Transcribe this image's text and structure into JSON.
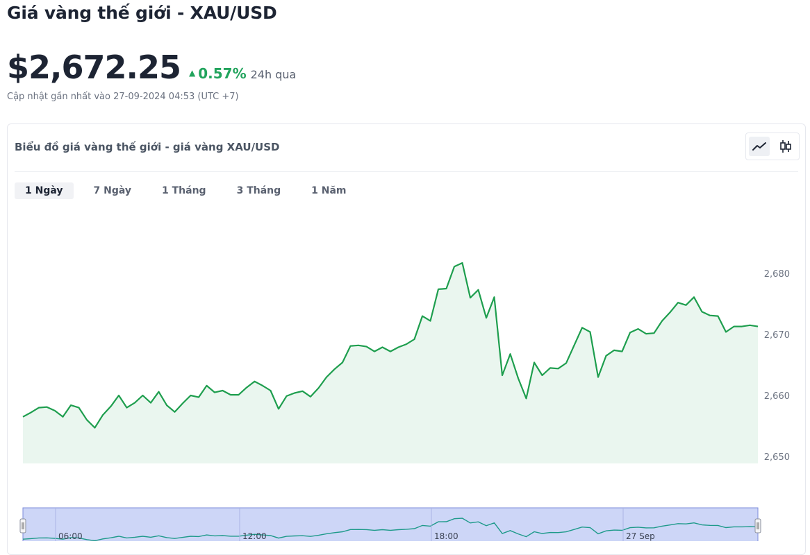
{
  "page": {
    "title": "Giá vàng thế giới - XAU/USD",
    "price": "$2,672.25",
    "change": "0.57%",
    "period": "24h qua",
    "updated": "Cập nhật gần nhất vào 27-09-2024 04:53 (UTC +7)"
  },
  "card": {
    "title": "Biểu đồ giá vàng thế giới - giá vàng XAU/USD"
  },
  "tabs": [
    {
      "label": "1 Ngày",
      "active": true
    },
    {
      "label": "7 Ngày",
      "active": false
    },
    {
      "label": "1 Tháng",
      "active": false
    },
    {
      "label": "3 Tháng",
      "active": false
    },
    {
      "label": "1 Năm",
      "active": false
    }
  ],
  "icons": {
    "line_chart": "line-chart-icon",
    "candlestick": "candlestick-icon"
  },
  "colors": {
    "line": "#1e9e4e",
    "area": "#eaf6ef",
    "up": "#22a45d",
    "navigator_bg": "#cdd6f7",
    "navigator_border": "#7b8bd8"
  },
  "chart_data": {
    "type": "line",
    "ylim": [
      2650,
      2685
    ],
    "yticks": [
      "2,650",
      "2,660",
      "2,670",
      "2,680"
    ],
    "ytick_values": [
      2650,
      2660,
      2670,
      2680
    ],
    "navigator_ticks": [
      "06:00",
      "12:00",
      "18:00",
      "27 Sep"
    ],
    "grid": false,
    "legend": "none",
    "values": [
      2656.5,
      2657.2,
      2658,
      2658.1,
      2657.5,
      2656.5,
      2658.4,
      2658,
      2656,
      2654.7,
      2656.8,
      2658.2,
      2660,
      2658,
      2658.8,
      2660,
      2658.8,
      2660.6,
      2658.4,
      2657.3,
      2658.7,
      2660,
      2659.7,
      2661.6,
      2660.5,
      2660.8,
      2660.1,
      2660.1,
      2661.3,
      2662.3,
      2661.6,
      2660.8,
      2657.8,
      2659.9,
      2660.4,
      2660.7,
      2659.8,
      2661.2,
      2663,
      2664.3,
      2665.4,
      2668.1,
      2668.2,
      2668,
      2667.2,
      2667.9,
      2667.2,
      2667.9,
      2668.4,
      2669.2,
      2673,
      2672.2,
      2677.4,
      2677.5,
      2681.1,
      2681.7,
      2676,
      2677.3,
      2672.7,
      2676.1,
      2663.3,
      2666.8,
      2662.8,
      2659.5,
      2665.4,
      2663.3,
      2664.5,
      2664.4,
      2665.3,
      2668.2,
      2671.1,
      2670.4,
      2663,
      2666.5,
      2667.4,
      2667.2,
      2670.3,
      2670.9,
      2670.1,
      2670.2,
      2672.2,
      2673.6,
      2675.2,
      2674.8,
      2676.1,
      2673.7,
      2673.1,
      2673,
      2670.4,
      2671.3,
      2671.3,
      2671.5,
      2671.3
    ]
  }
}
